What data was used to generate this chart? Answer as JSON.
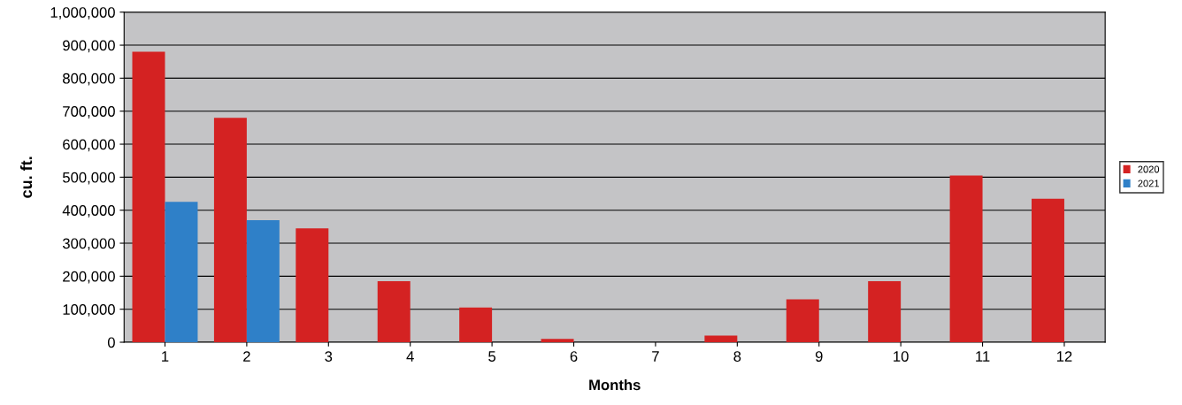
{
  "chart_data": {
    "type": "bar",
    "xlabel": "Months",
    "ylabel": "cu. ft.",
    "categories": [
      "1",
      "2",
      "3",
      "4",
      "5",
      "6",
      "7",
      "8",
      "9",
      "10",
      "11",
      "12"
    ],
    "series": [
      {
        "name": "2020",
        "color": "#d42222",
        "values": [
          880000,
          680000,
          345000,
          185000,
          105000,
          10000,
          0,
          20000,
          130000,
          185000,
          505000,
          435000
        ]
      },
      {
        "name": "2021",
        "color": "#2f80c8",
        "values": [
          425000,
          370000,
          null,
          null,
          null,
          null,
          null,
          null,
          null,
          null,
          null,
          null
        ]
      }
    ],
    "ylim": [
      0,
      1000000
    ],
    "yticks": [
      {
        "value": 0,
        "label": "0"
      },
      {
        "value": 100000,
        "label": "100,000"
      },
      {
        "value": 200000,
        "label": "200,000"
      },
      {
        "value": 300000,
        "label": "300,000"
      },
      {
        "value": 400000,
        "label": "400,000"
      },
      {
        "value": 500000,
        "label": "500,000"
      },
      {
        "value": 600000,
        "label": "600,000"
      },
      {
        "value": 700000,
        "label": "700,000"
      },
      {
        "value": 800000,
        "label": "800,000"
      },
      {
        "value": 900000,
        "label": "900,000"
      },
      {
        "value": 1000000,
        "label": "1,000,000"
      }
    ],
    "grid": "y",
    "legend": "right"
  }
}
